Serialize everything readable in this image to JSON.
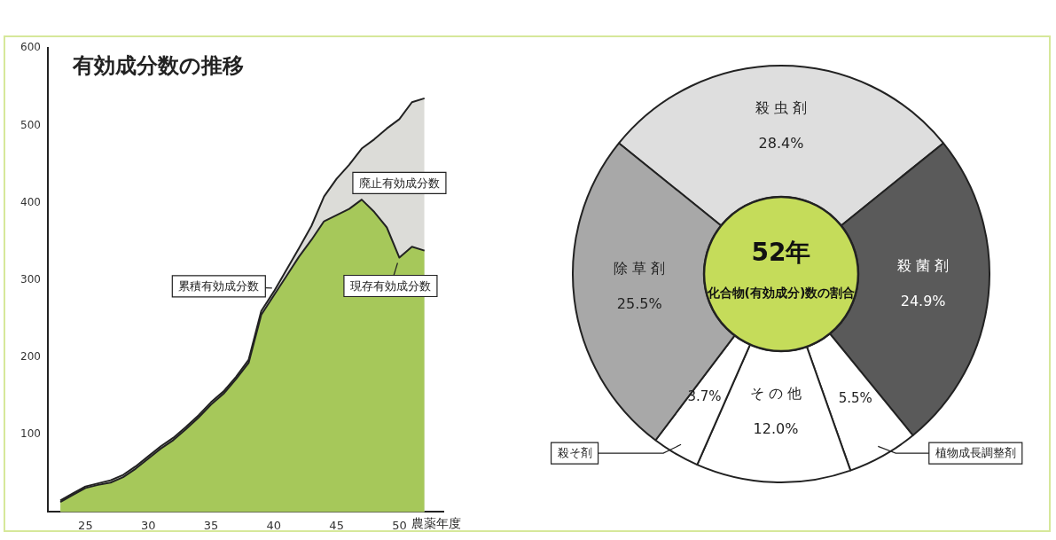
{
  "chart_data": [
    {
      "type": "area",
      "title": "有効成分数の推移",
      "xlabel": "農薬年度",
      "x": [
        23,
        24,
        25,
        26,
        27,
        28,
        29,
        30,
        31,
        32,
        33,
        34,
        35,
        36,
        37,
        38,
        39,
        40,
        41,
        42,
        43,
        44,
        45,
        46,
        47,
        48,
        49,
        50,
        51,
        52
      ],
      "series": [
        {
          "name": "累積有効成分数",
          "color": "#dcdcd8",
          "values": [
            15,
            24,
            33,
            37,
            41,
            48,
            59,
            72,
            85,
            96,
            110,
            125,
            142,
            156,
            175,
            197,
            260,
            285,
            313,
            341,
            370,
            408,
            431,
            449,
            470,
            482,
            496,
            508,
            530,
            535
          ]
        },
        {
          "name": "現存有効成分数",
          "color": "#a6c85a",
          "values": [
            13,
            22,
            31,
            35,
            38,
            45,
            56,
            69,
            82,
            93,
            107,
            122,
            139,
            153,
            172,
            193,
            255,
            280,
            305,
            330,
            352,
            376,
            384,
            392,
            404,
            388,
            368,
            329,
            343,
            338
          ]
        }
      ],
      "annotations": [
        "廃止有効成分数"
      ],
      "xlim": [
        22,
        53.5
      ],
      "xticks": [
        25,
        30,
        35,
        40,
        45,
        50
      ],
      "ylim": [
        0,
        600
      ],
      "yticks": [
        100,
        200,
        300,
        400,
        500,
        600
      ],
      "grid": false,
      "legend": false
    },
    {
      "type": "donut",
      "title": "52年",
      "subtitle": "化合物(有効成分)数の割合",
      "categories": [
        "殺虫剤",
        "殺菌剤",
        "植物成長調整剤",
        "その他",
        "殺そ剤",
        "除草剤"
      ],
      "values": [
        28.4,
        24.9,
        5.5,
        12.0,
        3.7,
        25.5
      ],
      "value_labels": [
        "28.4%",
        "24.9%",
        "5.5%",
        "12.0%",
        "3.7%",
        "25.5%"
      ],
      "colors": [
        "#dedede",
        "#5a5a5a",
        "#ffffff",
        "#ffffff",
        "#ffffff",
        "#a8a8a8"
      ],
      "legend": false
    }
  ]
}
